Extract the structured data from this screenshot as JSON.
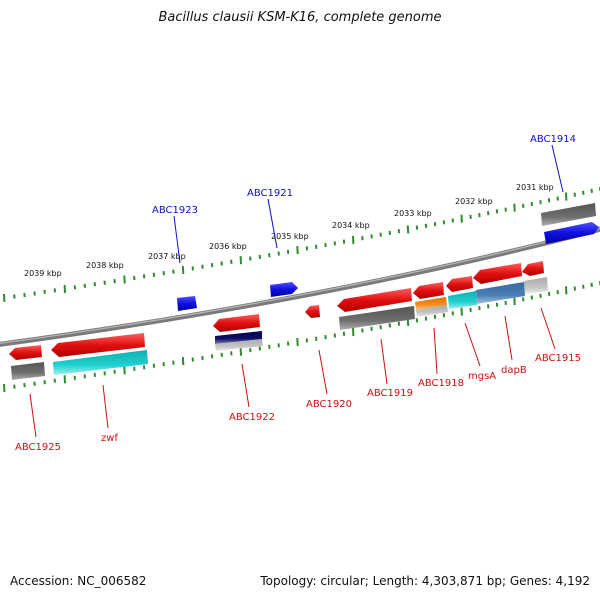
{
  "title": "Bacillus clausii KSM-K16, complete genome",
  "footer": {
    "accession": "Accession: NC_006582",
    "topology": "Topology: circular; Length: 4,303,871 bp; Genes: 4,192"
  },
  "scale_labels": [
    "2031 kbp",
    "2032 kbp",
    "2033 kbp",
    "2034 kbp",
    "2035 kbp",
    "2036 kbp",
    "2037 kbp",
    "2038 kbp",
    "2039 kbp"
  ],
  "gene_labels": [
    {
      "text": "ABC1914",
      "strand": "forward"
    },
    {
      "text": "ABC1921",
      "strand": "forward"
    },
    {
      "text": "ABC1923",
      "strand": "forward"
    },
    {
      "text": "ABC1915",
      "strand": "reverse"
    },
    {
      "text": "dapB",
      "strand": "reverse"
    },
    {
      "text": "mgsA",
      "strand": "reverse"
    },
    {
      "text": "ABC1918",
      "strand": "reverse"
    },
    {
      "text": "ABC1919",
      "strand": "reverse"
    },
    {
      "text": "ABC1920",
      "strand": "reverse"
    },
    {
      "text": "ABC1922",
      "strand": "reverse"
    },
    {
      "text": "zwf",
      "strand": "reverse"
    },
    {
      "text": "ABC1925",
      "strand": "reverse"
    }
  ],
  "colors": {
    "backbone": "#7a7a7a",
    "forward_gene": "#1010e0",
    "reverse_gene": "#e01010",
    "cog_gray": "#666666",
    "cog_cyan": "#18c8c8",
    "cog_orange": "#f09020",
    "cog_steelblue": "#4a7fb5",
    "cog_navy": "#10106a",
    "cog_lightgray": "#bdbdbd",
    "tick": "#2e8b2e",
    "forward_label": "#1010c0",
    "reverse_label": "#cc1010"
  }
}
